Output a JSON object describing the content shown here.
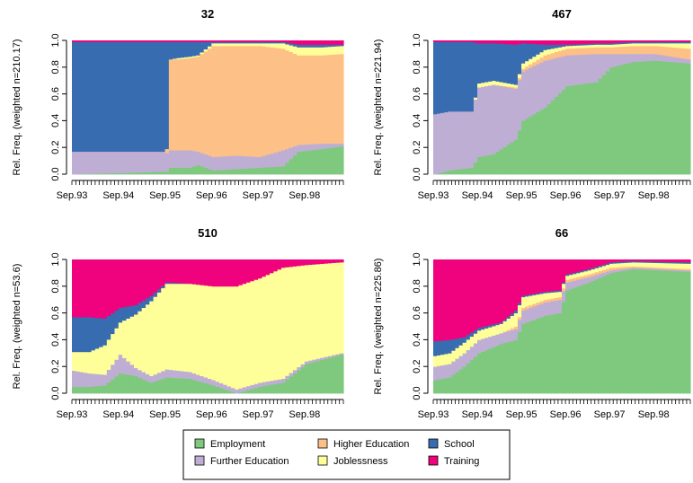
{
  "chart_data": {
    "type": "area",
    "legend_position": "bottom-center",
    "legend": [
      {
        "key": "employment",
        "label": "Employment",
        "color": "#7fc97f"
      },
      {
        "key": "further_education",
        "label": "Further Education",
        "color": "#beaed4"
      },
      {
        "key": "higher_education",
        "label": "Higher Education",
        "color": "#fdc086"
      },
      {
        "key": "joblessness",
        "label": "Joblessness",
        "color": "#ffff99"
      },
      {
        "key": "school",
        "label": "School",
        "color": "#386cb0"
      },
      {
        "key": "training",
        "label": "Training",
        "color": "#f0027f"
      }
    ],
    "state_order": [
      "employment",
      "further_education",
      "higher_education",
      "joblessness",
      "school",
      "training"
    ],
    "x_ticks": [
      "Sep.93",
      "Sep.94",
      "Sep.95",
      "Sep.96",
      "Sep.97",
      "Sep.98"
    ],
    "y_ticks": [
      "0.0",
      "0.2",
      "0.4",
      "0.6",
      "0.8",
      "1.0"
    ],
    "ylim": [
      0,
      1
    ],
    "months": 70,
    "panels": [
      {
        "title": "32",
        "ylabel": "Rel. Freq. (weighted n=210.17)",
        "keyframes": [
          {
            "t": 0,
            "employment": 0.0,
            "further_education": 0.17,
            "higher_education": 0.0,
            "joblessness": 0.0,
            "school": 0.82,
            "training": 0.01
          },
          {
            "t": 12,
            "employment": 0.01,
            "further_education": 0.16,
            "higher_education": 0.0,
            "joblessness": 0.0,
            "school": 0.82,
            "training": 0.01
          },
          {
            "t": 23,
            "employment": 0.02,
            "further_education": 0.15,
            "higher_education": 0.0,
            "joblessness": 0.0,
            "school": 0.82,
            "training": 0.01
          },
          {
            "t": 24,
            "employment": 0.02,
            "further_education": 0.14,
            "higher_education": 0.03,
            "joblessness": 0.0,
            "school": 0.8,
            "training": 0.01
          },
          {
            "t": 25,
            "employment": 0.05,
            "further_education": 0.13,
            "higher_education": 0.68,
            "joblessness": 0.0,
            "school": 0.13,
            "training": 0.01
          },
          {
            "t": 27,
            "employment": 0.05,
            "further_education": 0.13,
            "higher_education": 0.68,
            "joblessness": 0.01,
            "school": 0.12,
            "training": 0.01
          },
          {
            "t": 30,
            "employment": 0.05,
            "further_education": 0.13,
            "higher_education": 0.69,
            "joblessness": 0.01,
            "school": 0.11,
            "training": 0.01
          },
          {
            "t": 32,
            "employment": 0.07,
            "further_education": 0.1,
            "higher_education": 0.71,
            "joblessness": 0.01,
            "school": 0.1,
            "training": 0.01
          },
          {
            "t": 36,
            "employment": 0.03,
            "further_education": 0.1,
            "higher_education": 0.83,
            "joblessness": 0.02,
            "school": 0.01,
            "training": 0.01
          },
          {
            "t": 42,
            "employment": 0.04,
            "further_education": 0.1,
            "higher_education": 0.82,
            "joblessness": 0.02,
            "school": 0.01,
            "training": 0.01
          },
          {
            "t": 48,
            "employment": 0.05,
            "further_education": 0.08,
            "higher_education": 0.83,
            "joblessness": 0.02,
            "school": 0.01,
            "training": 0.01
          },
          {
            "t": 54,
            "employment": 0.06,
            "further_education": 0.12,
            "higher_education": 0.76,
            "joblessness": 0.04,
            "school": 0.01,
            "training": 0.01
          },
          {
            "t": 58,
            "employment": 0.17,
            "further_education": 0.05,
            "higher_education": 0.67,
            "joblessness": 0.06,
            "school": 0.02,
            "training": 0.03
          },
          {
            "t": 64,
            "employment": 0.19,
            "further_education": 0.04,
            "higher_education": 0.66,
            "joblessness": 0.06,
            "school": 0.02,
            "training": 0.03
          },
          {
            "t": 69,
            "employment": 0.21,
            "further_education": 0.02,
            "higher_education": 0.67,
            "joblessness": 0.06,
            "school": 0.01,
            "training": 0.03
          }
        ]
      },
      {
        "title": "467",
        "ylabel": "Rel. Freq. (weighted n=221.94)",
        "keyframes": [
          {
            "t": 0,
            "employment": 0.0,
            "further_education": 0.45,
            "higher_education": 0.0,
            "joblessness": 0.0,
            "school": 0.54,
            "training": 0.01
          },
          {
            "t": 4,
            "employment": 0.03,
            "further_education": 0.44,
            "higher_education": 0.0,
            "joblessness": 0.0,
            "school": 0.52,
            "training": 0.01
          },
          {
            "t": 10,
            "employment": 0.05,
            "further_education": 0.42,
            "higher_education": 0.0,
            "joblessness": 0.0,
            "school": 0.52,
            "training": 0.01
          },
          {
            "t": 12,
            "employment": 0.13,
            "further_education": 0.52,
            "higher_education": 0.0,
            "joblessness": 0.03,
            "school": 0.3,
            "training": 0.02
          },
          {
            "t": 16,
            "employment": 0.15,
            "further_education": 0.52,
            "higher_education": 0.0,
            "joblessness": 0.03,
            "school": 0.28,
            "training": 0.02
          },
          {
            "t": 22,
            "employment": 0.26,
            "further_education": 0.38,
            "higher_education": 0.01,
            "joblessness": 0.02,
            "school": 0.3,
            "training": 0.03
          },
          {
            "t": 24,
            "employment": 0.4,
            "further_education": 0.37,
            "higher_education": 0.02,
            "joblessness": 0.04,
            "school": 0.15,
            "training": 0.02
          },
          {
            "t": 30,
            "employment": 0.5,
            "further_education": 0.35,
            "higher_education": 0.04,
            "joblessness": 0.04,
            "school": 0.04,
            "training": 0.03
          },
          {
            "t": 36,
            "employment": 0.66,
            "further_education": 0.23,
            "higher_education": 0.05,
            "joblessness": 0.02,
            "school": 0.01,
            "training": 0.03
          },
          {
            "t": 44,
            "employment": 0.69,
            "further_education": 0.21,
            "higher_education": 0.05,
            "joblessness": 0.02,
            "school": 0.01,
            "training": 0.02
          },
          {
            "t": 48,
            "employment": 0.8,
            "further_education": 0.1,
            "higher_education": 0.05,
            "joblessness": 0.02,
            "school": 0.01,
            "training": 0.02
          },
          {
            "t": 54,
            "employment": 0.84,
            "further_education": 0.06,
            "higher_education": 0.06,
            "joblessness": 0.02,
            "school": 0.01,
            "training": 0.01
          },
          {
            "t": 60,
            "employment": 0.85,
            "further_education": 0.05,
            "higher_education": 0.06,
            "joblessness": 0.02,
            "school": 0.01,
            "training": 0.01
          },
          {
            "t": 69,
            "employment": 0.83,
            "further_education": 0.03,
            "higher_education": 0.08,
            "joblessness": 0.04,
            "school": 0.01,
            "training": 0.01
          }
        ]
      },
      {
        "title": "510",
        "ylabel": "Rel. Freq. (weighted n=53.6)",
        "keyframes": [
          {
            "t": 0,
            "employment": 0.05,
            "further_education": 0.12,
            "higher_education": 0.0,
            "joblessness": 0.14,
            "school": 0.26,
            "training": 0.43
          },
          {
            "t": 4,
            "employment": 0.05,
            "further_education": 0.1,
            "higher_education": 0.0,
            "joblessness": 0.16,
            "school": 0.26,
            "training": 0.43
          },
          {
            "t": 8,
            "employment": 0.06,
            "further_education": 0.08,
            "higher_education": 0.0,
            "joblessness": 0.22,
            "school": 0.2,
            "training": 0.44
          },
          {
            "t": 12,
            "employment": 0.15,
            "further_education": 0.14,
            "higher_education": 0.0,
            "joblessness": 0.24,
            "school": 0.11,
            "training": 0.36
          },
          {
            "t": 16,
            "employment": 0.13,
            "further_education": 0.06,
            "higher_education": 0.0,
            "joblessness": 0.4,
            "school": 0.07,
            "training": 0.34
          },
          {
            "t": 20,
            "employment": 0.08,
            "further_education": 0.05,
            "higher_education": 0.0,
            "joblessness": 0.56,
            "school": 0.04,
            "training": 0.27
          },
          {
            "t": 24,
            "employment": 0.12,
            "further_education": 0.06,
            "higher_education": 0.0,
            "joblessness": 0.64,
            "school": 0.01,
            "training": 0.17
          },
          {
            "t": 30,
            "employment": 0.11,
            "further_education": 0.05,
            "higher_education": 0.0,
            "joblessness": 0.66,
            "school": 0.0,
            "training": 0.18
          },
          {
            "t": 36,
            "employment": 0.06,
            "further_education": 0.04,
            "higher_education": 0.0,
            "joblessness": 0.7,
            "school": 0.0,
            "training": 0.2
          },
          {
            "t": 42,
            "employment": 0.0,
            "further_education": 0.03,
            "higher_education": 0.0,
            "joblessness": 0.77,
            "school": 0.0,
            "training": 0.2
          },
          {
            "t": 48,
            "employment": 0.05,
            "further_education": 0.03,
            "higher_education": 0.0,
            "joblessness": 0.78,
            "school": 0.0,
            "training": 0.14
          },
          {
            "t": 54,
            "employment": 0.08,
            "further_education": 0.03,
            "higher_education": 0.0,
            "joblessness": 0.83,
            "school": 0.0,
            "training": 0.06
          },
          {
            "t": 60,
            "employment": 0.22,
            "further_education": 0.02,
            "higher_education": 0.0,
            "joblessness": 0.72,
            "school": 0.0,
            "training": 0.04
          },
          {
            "t": 69,
            "employment": 0.29,
            "further_education": 0.01,
            "higher_education": 0.0,
            "joblessness": 0.68,
            "school": 0.0,
            "training": 0.02
          }
        ]
      },
      {
        "title": "66",
        "ylabel": "Rel. Freq. (weighted n=225.86)",
        "keyframes": [
          {
            "t": 0,
            "employment": 0.1,
            "further_education": 0.1,
            "higher_education": 0.0,
            "joblessness": 0.08,
            "school": 0.11,
            "training": 0.61
          },
          {
            "t": 4,
            "employment": 0.12,
            "further_education": 0.1,
            "higher_education": 0.0,
            "joblessness": 0.08,
            "school": 0.1,
            "training": 0.6
          },
          {
            "t": 8,
            "employment": 0.2,
            "further_education": 0.1,
            "higher_education": 0.0,
            "joblessness": 0.08,
            "school": 0.04,
            "training": 0.58
          },
          {
            "t": 12,
            "employment": 0.3,
            "further_education": 0.1,
            "higher_education": 0.0,
            "joblessness": 0.07,
            "school": 0.02,
            "training": 0.51
          },
          {
            "t": 18,
            "employment": 0.37,
            "further_education": 0.08,
            "higher_education": 0.0,
            "joblessness": 0.07,
            "school": 0.01,
            "training": 0.47
          },
          {
            "t": 22,
            "employment": 0.4,
            "further_education": 0.08,
            "higher_education": 0.02,
            "joblessness": 0.1,
            "school": 0.02,
            "training": 0.38
          },
          {
            "t": 24,
            "employment": 0.52,
            "further_education": 0.1,
            "higher_education": 0.02,
            "joblessness": 0.08,
            "school": 0.01,
            "training": 0.27
          },
          {
            "t": 30,
            "employment": 0.58,
            "further_education": 0.1,
            "higher_education": 0.02,
            "joblessness": 0.05,
            "school": 0.01,
            "training": 0.24
          },
          {
            "t": 34,
            "employment": 0.6,
            "further_education": 0.1,
            "higher_education": 0.02,
            "joblessness": 0.04,
            "school": 0.01,
            "training": 0.23
          },
          {
            "t": 36,
            "employment": 0.77,
            "further_education": 0.06,
            "higher_education": 0.02,
            "joblessness": 0.03,
            "school": 0.01,
            "training": 0.11
          },
          {
            "t": 42,
            "employment": 0.83,
            "further_education": 0.04,
            "higher_education": 0.02,
            "joblessness": 0.03,
            "school": 0.01,
            "training": 0.07
          },
          {
            "t": 48,
            "employment": 0.9,
            "further_education": 0.02,
            "higher_education": 0.02,
            "joblessness": 0.03,
            "school": 0.01,
            "training": 0.02
          },
          {
            "t": 54,
            "employment": 0.93,
            "further_education": 0.01,
            "higher_education": 0.01,
            "joblessness": 0.03,
            "school": 0.01,
            "training": 0.01
          },
          {
            "t": 69,
            "employment": 0.91,
            "further_education": 0.01,
            "higher_education": 0.01,
            "joblessness": 0.04,
            "school": 0.01,
            "training": 0.02
          }
        ]
      }
    ]
  }
}
